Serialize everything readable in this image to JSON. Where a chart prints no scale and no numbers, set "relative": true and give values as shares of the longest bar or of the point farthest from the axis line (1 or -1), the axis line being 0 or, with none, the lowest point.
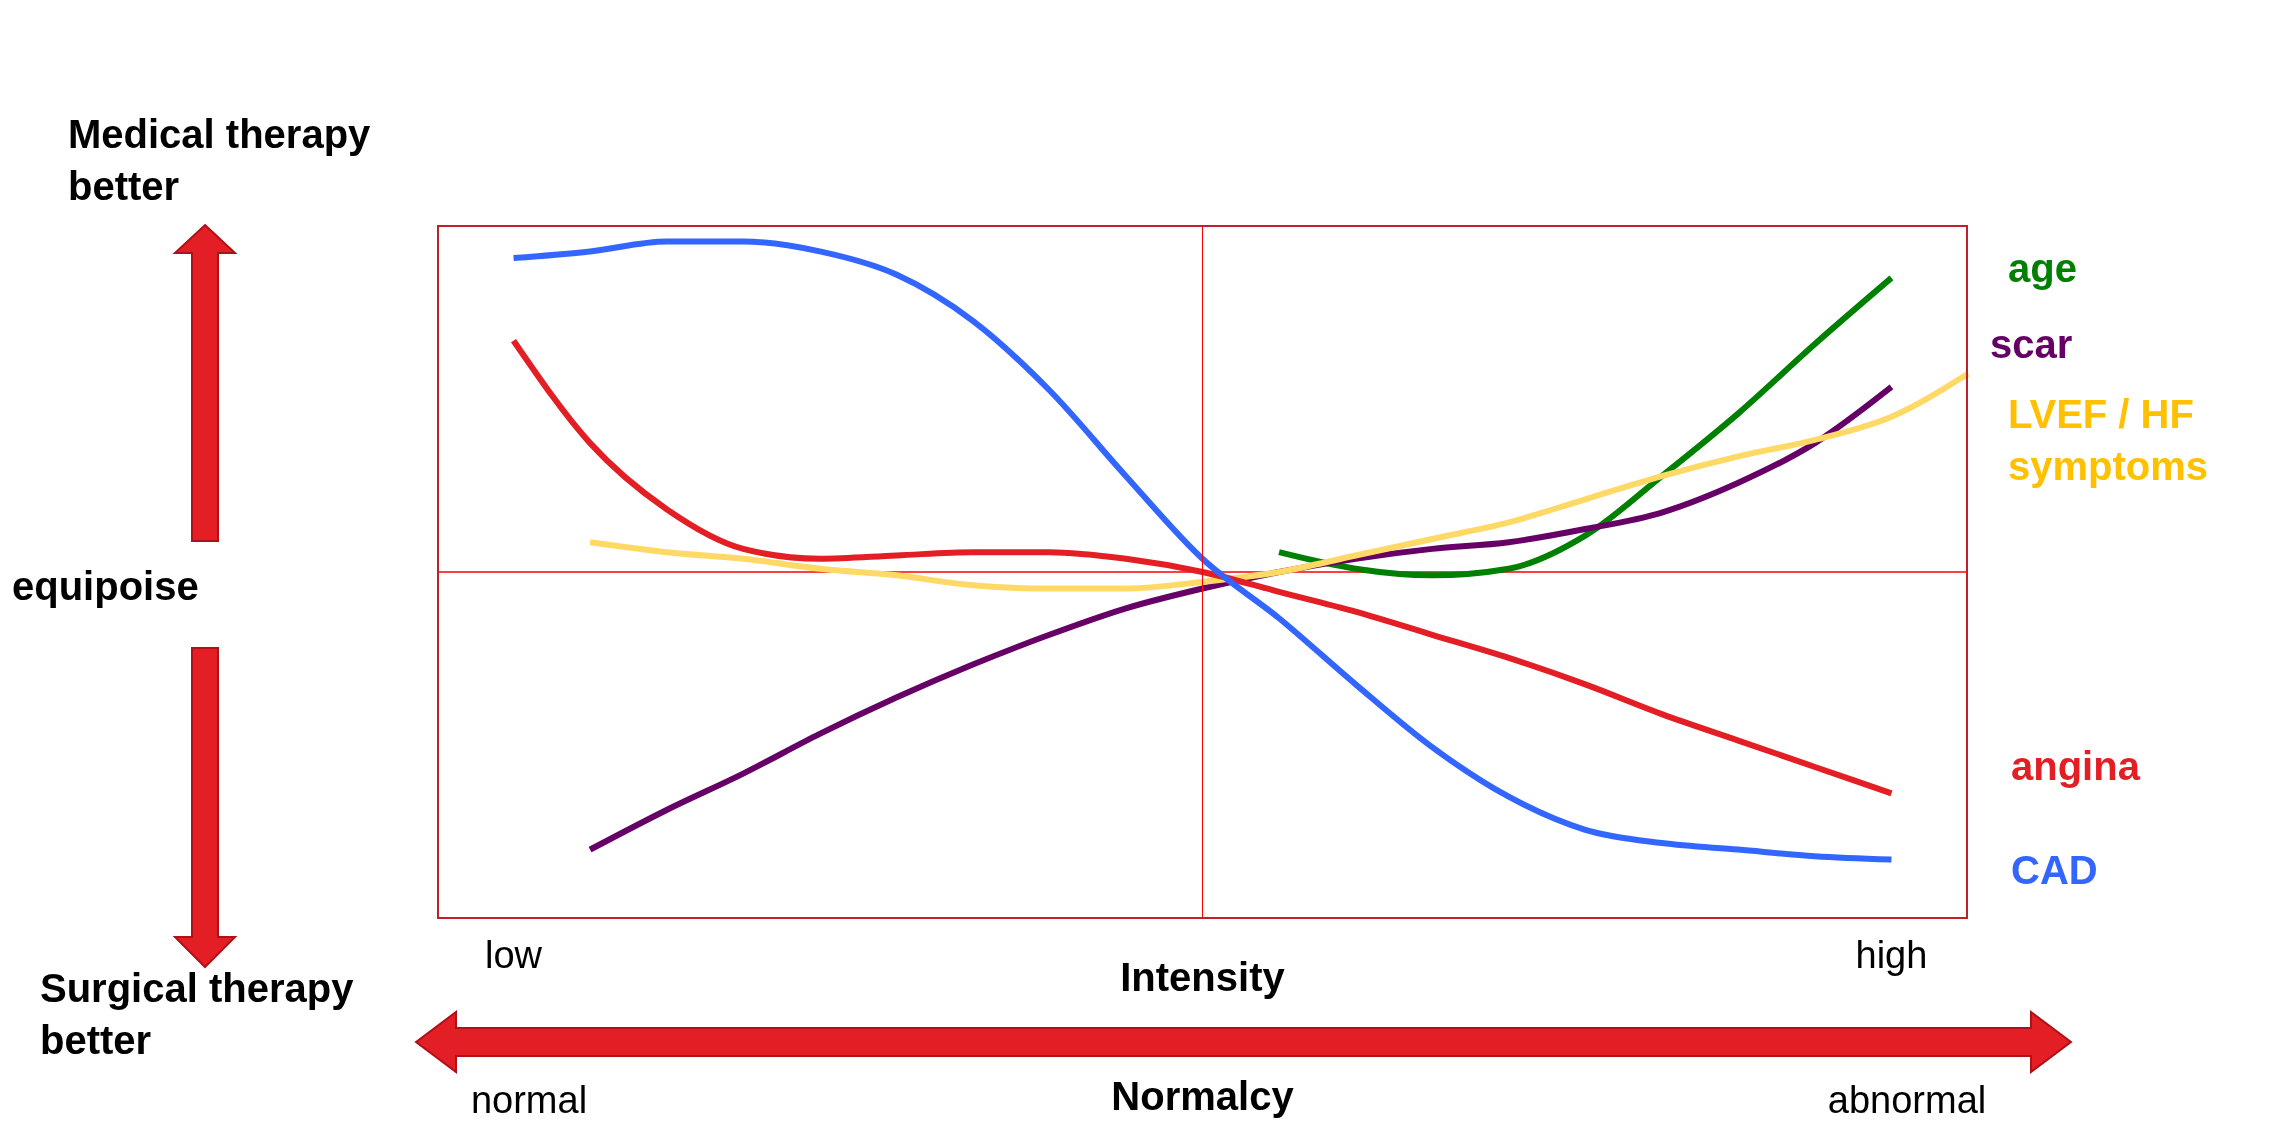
{
  "chart_data": {
    "type": "line",
    "relative": true,
    "xlabel": "Intensity",
    "x2label": "Normalcy",
    "categories": [
      null,
      "low",
      null,
      null,
      null,
      null,
      null,
      null,
      null,
      null,
      null,
      null,
      null,
      null,
      null,
      null,
      null,
      null,
      null,
      "high",
      null
    ],
    "series": [
      {
        "name": "age",
        "color": "#008000",
        "values": [
          null,
          null,
          null,
          null,
          null,
          null,
          null,
          null,
          null,
          null,
          null,
          0.06,
          0.01,
          -0.01,
          0.01,
          0.11,
          0.29,
          0.48,
          0.69,
          0.89,
          null
        ]
      },
      {
        "name": "scar",
        "color": "#660066",
        "values": [
          null,
          null,
          -0.84,
          -0.72,
          -0.61,
          -0.49,
          -0.38,
          -0.28,
          -0.19,
          -0.11,
          -0.05,
          0,
          0.04,
          0.07,
          0.09,
          0.13,
          0.18,
          0.27,
          0.39,
          0.56,
          null
        ]
      },
      {
        "name": "LVEF / HF symptoms",
        "color": "#ffd966",
        "values": [
          null,
          null,
          0.09,
          0.06,
          0.04,
          0.01,
          -0.01,
          -0.04,
          -0.05,
          -0.05,
          -0.03,
          0,
          0.05,
          0.1,
          0.15,
          0.22,
          0.29,
          0.35,
          0.4,
          0.47,
          0.6
        ]
      },
      {
        "name": "angina",
        "color": "#e31e24",
        "values": [
          null,
          0.7,
          0.39,
          0.19,
          0.07,
          0.04,
          0.05,
          0.06,
          0.06,
          0.04,
          0,
          -0.06,
          -0.12,
          -0.19,
          -0.26,
          -0.34,
          -0.43,
          -0.51,
          -0.59,
          -0.67,
          null
        ]
      },
      {
        "name": "CAD",
        "color": "#3366ff",
        "values": [
          null,
          0.95,
          0.97,
          1,
          1,
          0.97,
          0.9,
          0.76,
          0.55,
          0.29,
          0.04,
          -0.14,
          -0.34,
          -0.53,
          -0.68,
          -0.78,
          -0.82,
          -0.84,
          -0.86,
          -0.87,
          null
        ]
      }
    ],
    "ref_lines": [
      {
        "axis": "y",
        "value": 0,
        "color": "#ff0000"
      }
    ],
    "annotations": [
      "Medical therapy better",
      "equipoise",
      "Surgical therapy better",
      "normal",
      "abnormal"
    ],
    "grid": false,
    "legend": false
  }
}
